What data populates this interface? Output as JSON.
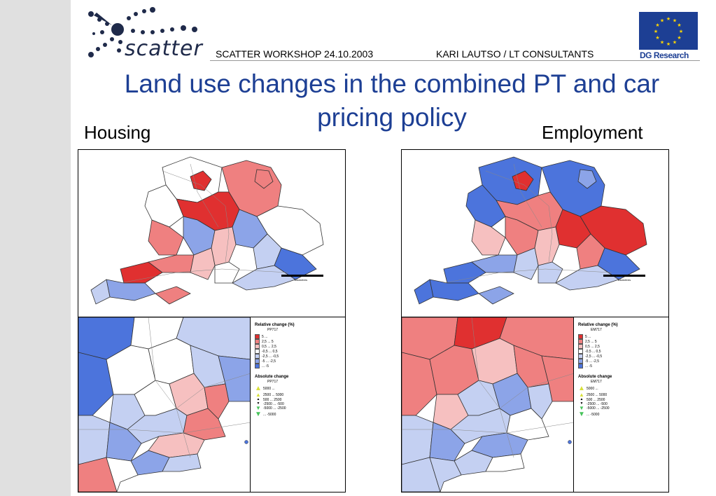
{
  "header": {
    "logo_text": "scatter",
    "workshop": "SCATTER  WORKSHOP  24.10.2003",
    "consultant": "KARI LAUTSO / LT CONSULTANTS",
    "dg": "DG Research"
  },
  "title": "Land use changes in the combined PT and car pricing policy",
  "panels": {
    "housing_label": "Housing",
    "employment_label": "Employment"
  },
  "legend_housing": {
    "relative_title": "Relative change (%)",
    "relative_code": "PP717",
    "absolute_title": "Absolute change",
    "absolute_code": "PP717"
  },
  "legend_employment": {
    "relative_title": "Relative change (%)",
    "relative_code": "EM717",
    "absolute_title": "Absolute change",
    "absolute_code": "EM717"
  },
  "relative_classes": [
    {
      "label": "5  ...",
      "color": "#e03030"
    },
    {
      "label": "2,5 ...  5",
      "color": "#ef8080"
    },
    {
      "label": "0,5 ...  2,5",
      "color": "#f6c0c0"
    },
    {
      "label": "-0,5 ...  0,5",
      "color": "#ffffff"
    },
    {
      "label": "-2,5 ...  -0,5",
      "color": "#c4d0f2"
    },
    {
      "label": "-5   ...  -2,5",
      "color": "#8ca4e8"
    },
    {
      "label": "...  -5",
      "color": "#4c74dc"
    }
  ],
  "absolute_classes": [
    {
      "label": "5000 ...",
      "symbol": "big-up"
    },
    {
      "label": "2500 ...  5000",
      "symbol": "mid-up"
    },
    {
      "label": "500  ...  2500",
      "symbol": "small-up"
    },
    {
      "label": "-2500 ...  -500",
      "symbol": "small-down"
    },
    {
      "label": "-5000 ... -2500",
      "symbol": "mid-down"
    },
    {
      "label": "...  -5000",
      "symbol": "big-down"
    }
  ],
  "scale": {
    "unit": "kilometres",
    "ticks": [
      "0",
      "20",
      "40"
    ]
  },
  "colors": {
    "title": "#1d3f94",
    "eu_blue": "#1d3f94",
    "eu_star": "#ffd700"
  }
}
